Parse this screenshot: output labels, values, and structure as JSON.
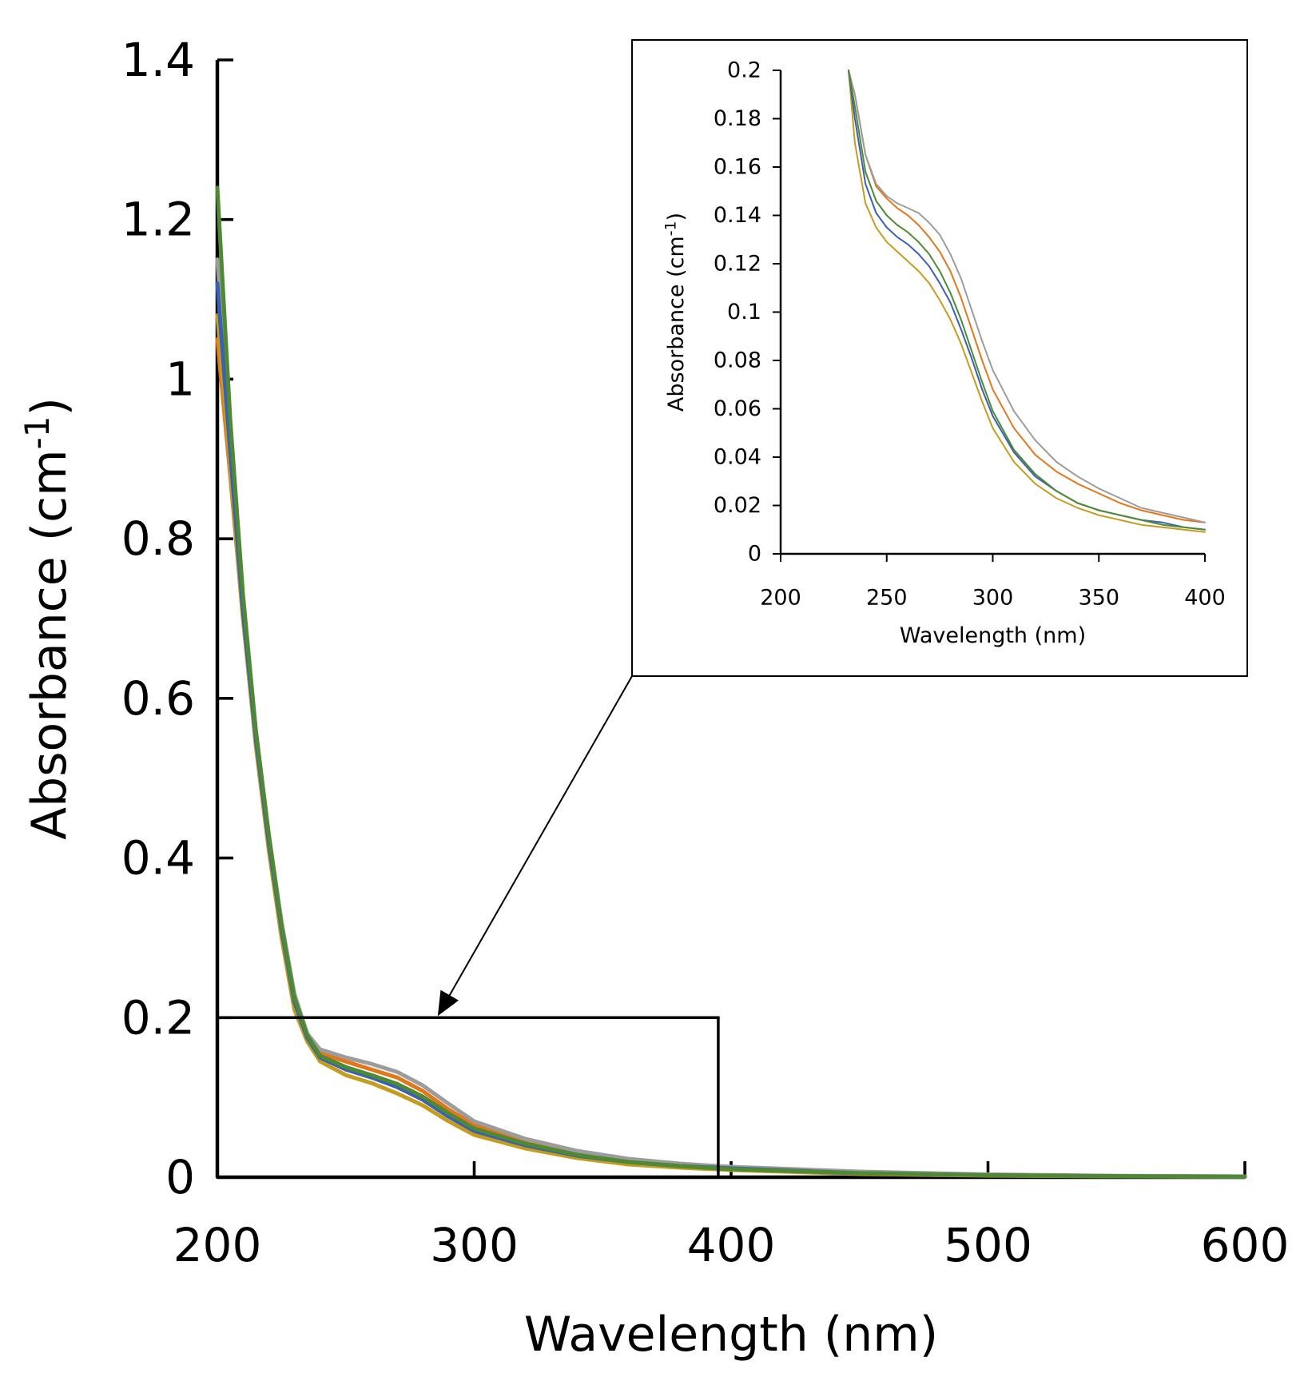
{
  "chart_data": [
    {
      "name": "main-spectrum",
      "type": "line",
      "xlabel": "Wavelength (nm)",
      "ylabel_base": "Absorbance (cm",
      "ylabel_sup": "-1",
      "ylabel_close": ")",
      "xlim": [
        200,
        600
      ],
      "ylim": [
        0,
        1.4
      ],
      "xticks": [
        "200",
        "300",
        "400",
        "500",
        "600"
      ],
      "yticks": [
        "0",
        "0.2",
        "0.4",
        "0.6",
        "0.8",
        "1",
        "1.2",
        "1.4"
      ],
      "grid": false,
      "legend": "none",
      "zoom_region": {
        "x": [
          200,
          395
        ],
        "y": [
          0,
          0.2
        ]
      },
      "series": [
        {
          "name": "orange",
          "color": "#E4761B",
          "x": [
            200,
            205,
            210,
            215,
            220,
            225,
            230,
            235,
            240,
            250,
            260,
            270,
            280,
            290,
            300,
            320,
            340,
            360,
            380,
            400,
            450,
            500,
            550,
            600
          ],
          "y": [
            1.05,
            0.88,
            0.7,
            0.55,
            0.42,
            0.31,
            0.22,
            0.175,
            0.155,
            0.145,
            0.135,
            0.125,
            0.108,
            0.085,
            0.065,
            0.045,
            0.03,
            0.021,
            0.016,
            0.012,
            0.006,
            0.003,
            0.0015,
            0.001
          ]
        },
        {
          "name": "gray",
          "color": "#9C9C9C",
          "x": [
            200,
            205,
            210,
            215,
            220,
            225,
            230,
            235,
            240,
            250,
            260,
            270,
            280,
            290,
            300,
            320,
            340,
            360,
            380,
            400,
            450,
            500,
            550,
            600
          ],
          "y": [
            1.15,
            0.92,
            0.72,
            0.56,
            0.43,
            0.32,
            0.23,
            0.18,
            0.16,
            0.15,
            0.142,
            0.132,
            0.115,
            0.092,
            0.07,
            0.048,
            0.033,
            0.023,
            0.017,
            0.013,
            0.007,
            0.0035,
            0.0018,
            0.001
          ]
        },
        {
          "name": "gold",
          "color": "#C69C1D",
          "x": [
            200,
            205,
            210,
            215,
            220,
            225,
            230,
            235,
            240,
            250,
            260,
            270,
            280,
            290,
            300,
            320,
            340,
            360,
            380,
            400,
            450,
            500,
            550,
            600
          ],
          "y": [
            1.08,
            0.89,
            0.7,
            0.54,
            0.41,
            0.3,
            0.21,
            0.17,
            0.145,
            0.128,
            0.118,
            0.105,
            0.09,
            0.07,
            0.053,
            0.036,
            0.024,
            0.016,
            0.012,
            0.009,
            0.004,
            0.002,
            0.001,
            0.0005
          ]
        },
        {
          "name": "blue",
          "color": "#3A5FB5",
          "x": [
            200,
            205,
            210,
            215,
            220,
            225,
            230,
            235,
            240,
            250,
            260,
            270,
            280,
            290,
            300,
            320,
            340,
            360,
            380,
            400,
            450,
            500,
            550,
            600
          ],
          "y": [
            1.12,
            0.91,
            0.71,
            0.55,
            0.42,
            0.31,
            0.22,
            0.175,
            0.15,
            0.135,
            0.125,
            0.113,
            0.097,
            0.076,
            0.058,
            0.04,
            0.027,
            0.019,
            0.014,
            0.011,
            0.005,
            0.0025,
            0.0012,
            0.0006
          ]
        },
        {
          "name": "green",
          "color": "#4E8A33",
          "x": [
            200,
            205,
            210,
            215,
            220,
            225,
            230,
            235,
            240,
            250,
            260,
            270,
            280,
            290,
            300,
            320,
            340,
            360,
            380,
            400,
            450,
            500,
            550,
            600
          ],
          "y": [
            1.24,
            0.95,
            0.73,
            0.56,
            0.43,
            0.315,
            0.225,
            0.178,
            0.152,
            0.138,
            0.128,
            0.117,
            0.101,
            0.08,
            0.061,
            0.042,
            0.028,
            0.019,
            0.014,
            0.01,
            0.005,
            0.0025,
            0.0012,
            0.0006
          ]
        }
      ]
    },
    {
      "name": "inset-spectrum",
      "type": "line",
      "xlabel": "Wavelength (nm)",
      "ylabel_base": "Absorbance (cm",
      "ylabel_sup": "-1",
      "ylabel_close": ")",
      "xlim": [
        200,
        400
      ],
      "ylim": [
        0,
        0.2
      ],
      "xticks": [
        "200",
        "250",
        "300",
        "350",
        "400"
      ],
      "yticks": [
        "0",
        "0.02",
        "0.04",
        "0.06",
        "0.08",
        "0.1",
        "0.12",
        "0.14",
        "0.16",
        "0.18",
        "0.2"
      ],
      "grid": false,
      "legend": "none",
      "series": [
        {
          "name": "orange",
          "color": "#E4761B",
          "x": [
            232,
            235,
            240,
            245,
            250,
            255,
            260,
            265,
            270,
            275,
            280,
            285,
            290,
            295,
            300,
            310,
            320,
            330,
            340,
            350,
            360,
            370,
            380,
            390,
            400
          ],
          "y": [
            0.2,
            0.19,
            0.165,
            0.152,
            0.147,
            0.143,
            0.14,
            0.136,
            0.131,
            0.125,
            0.117,
            0.106,
            0.093,
            0.08,
            0.068,
            0.052,
            0.041,
            0.034,
            0.029,
            0.025,
            0.021,
            0.018,
            0.016,
            0.014,
            0.013
          ]
        },
        {
          "name": "gray",
          "color": "#9C9C9C",
          "x": [
            232,
            235,
            240,
            245,
            250,
            255,
            260,
            265,
            270,
            275,
            280,
            285,
            290,
            295,
            300,
            310,
            320,
            330,
            340,
            350,
            360,
            370,
            380,
            390,
            400
          ],
          "y": [
            0.2,
            0.19,
            0.165,
            0.153,
            0.148,
            0.145,
            0.143,
            0.141,
            0.137,
            0.132,
            0.124,
            0.114,
            0.101,
            0.088,
            0.076,
            0.059,
            0.047,
            0.038,
            0.032,
            0.027,
            0.023,
            0.019,
            0.017,
            0.015,
            0.013
          ]
        },
        {
          "name": "gold",
          "color": "#C69C1D",
          "x": [
            232,
            235,
            240,
            245,
            250,
            255,
            260,
            265,
            270,
            275,
            280,
            285,
            290,
            295,
            300,
            310,
            320,
            330,
            340,
            350,
            360,
            370,
            380,
            390,
            400
          ],
          "y": [
            0.2,
            0.17,
            0.145,
            0.135,
            0.129,
            0.125,
            0.121,
            0.117,
            0.112,
            0.105,
            0.097,
            0.087,
            0.075,
            0.063,
            0.052,
            0.038,
            0.029,
            0.023,
            0.019,
            0.016,
            0.014,
            0.012,
            0.011,
            0.01,
            0.009
          ]
        },
        {
          "name": "blue",
          "color": "#3A5FB5",
          "x": [
            232,
            235,
            240,
            245,
            250,
            255,
            260,
            265,
            270,
            275,
            280,
            285,
            290,
            295,
            300,
            310,
            320,
            330,
            340,
            350,
            360,
            370,
            380,
            390,
            400
          ],
          "y": [
            0.2,
            0.18,
            0.153,
            0.141,
            0.135,
            0.131,
            0.128,
            0.124,
            0.119,
            0.112,
            0.104,
            0.093,
            0.081,
            0.068,
            0.057,
            0.042,
            0.032,
            0.026,
            0.021,
            0.018,
            0.016,
            0.014,
            0.013,
            0.011,
            0.01
          ]
        },
        {
          "name": "green",
          "color": "#4E8A33",
          "x": [
            232,
            235,
            240,
            245,
            250,
            255,
            260,
            265,
            270,
            275,
            280,
            285,
            290,
            295,
            300,
            310,
            320,
            330,
            340,
            350,
            360,
            370,
            380,
            390,
            400
          ],
          "y": [
            0.2,
            0.185,
            0.158,
            0.146,
            0.14,
            0.136,
            0.133,
            0.129,
            0.124,
            0.117,
            0.108,
            0.097,
            0.084,
            0.071,
            0.059,
            0.043,
            0.033,
            0.026,
            0.021,
            0.018,
            0.016,
            0.014,
            0.012,
            0.011,
            0.01
          ]
        }
      ]
    }
  ]
}
